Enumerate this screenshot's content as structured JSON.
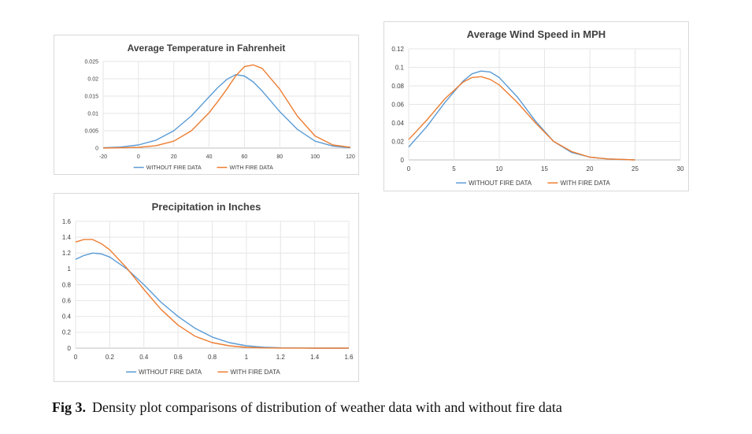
{
  "chart_data": [
    {
      "type": "line",
      "title": "Average Temperature in Fahrenheit",
      "xlabel": "",
      "ylabel": "",
      "xlim": [
        -20,
        120
      ],
      "ylim": [
        0,
        0.025
      ],
      "x_ticks": [
        -20,
        0,
        20,
        40,
        60,
        80,
        100,
        120
      ],
      "y_ticks": [
        0,
        0.005,
        0.01,
        0.015,
        0.02,
        0.025
      ],
      "grid": true,
      "legend_position": "bottom",
      "series": [
        {
          "name": "WITHOUT FIRE DATA",
          "color": "#5b9bd5",
          "x": [
            -20,
            -10,
            0,
            10,
            20,
            30,
            40,
            45,
            50,
            55,
            60,
            65,
            70,
            80,
            90,
            100,
            110,
            120
          ],
          "y": [
            0.0001,
            0.0003,
            0.0009,
            0.0023,
            0.005,
            0.0093,
            0.0148,
            0.0175,
            0.0198,
            0.0212,
            0.0208,
            0.0191,
            0.0165,
            0.0105,
            0.0054,
            0.002,
            0.0006,
            0.0001
          ]
        },
        {
          "name": "WITH FIRE DATA",
          "color": "#ed7d31",
          "x": [
            -20,
            -10,
            0,
            10,
            20,
            30,
            40,
            45,
            50,
            55,
            60,
            65,
            70,
            80,
            90,
            100,
            110,
            120
          ],
          "y": [
            0.0,
            0.0001,
            0.0002,
            0.0007,
            0.002,
            0.005,
            0.0102,
            0.0135,
            0.017,
            0.0208,
            0.0235,
            0.024,
            0.023,
            0.017,
            0.0092,
            0.0035,
            0.0009,
            0.0002
          ]
        }
      ]
    },
    {
      "type": "line",
      "title": "Average Wind Speed in MPH",
      "xlabel": "",
      "ylabel": "",
      "xlim": [
        0,
        30
      ],
      "ylim": [
        0,
        0.12
      ],
      "x_ticks": [
        0,
        5,
        10,
        15,
        20,
        25,
        30
      ],
      "y_ticks": [
        0,
        0.02,
        0.04,
        0.06,
        0.08,
        0.1,
        0.12
      ],
      "grid": true,
      "legend_position": "bottom",
      "series": [
        {
          "name": "WITHOUT FIRE DATA",
          "color": "#5b9bd5",
          "x": [
            0,
            2,
            4,
            6,
            7,
            8,
            9,
            10,
            12,
            14,
            16,
            18,
            20,
            22,
            25
          ],
          "y": [
            0.014,
            0.036,
            0.062,
            0.085,
            0.093,
            0.096,
            0.095,
            0.089,
            0.068,
            0.042,
            0.02,
            0.008,
            0.003,
            0.001,
            0.0
          ]
        },
        {
          "name": "WITH FIRE DATA",
          "color": "#ed7d31",
          "x": [
            0,
            2,
            4,
            6,
            7,
            8,
            9,
            10,
            12,
            14,
            16,
            18,
            20,
            22,
            25
          ],
          "y": [
            0.022,
            0.043,
            0.066,
            0.084,
            0.089,
            0.09,
            0.087,
            0.081,
            0.062,
            0.04,
            0.02,
            0.009,
            0.003,
            0.001,
            0.0
          ]
        }
      ]
    },
    {
      "type": "line",
      "title": "Precipitation in Inches",
      "xlabel": "",
      "ylabel": "",
      "xlim": [
        0,
        1.6
      ],
      "ylim": [
        0,
        1.6
      ],
      "x_ticks": [
        0,
        0.2,
        0.4,
        0.6,
        0.8,
        1,
        1.2,
        1.4,
        1.6
      ],
      "y_ticks": [
        0,
        0.2,
        0.4,
        0.6,
        0.8,
        1,
        1.2,
        1.4,
        1.6
      ],
      "grid": true,
      "legend_position": "bottom",
      "series": [
        {
          "name": "WITHOUT FIRE DATA",
          "color": "#5b9bd5",
          "x": [
            0,
            0.05,
            0.1,
            0.15,
            0.2,
            0.3,
            0.4,
            0.5,
            0.6,
            0.7,
            0.8,
            0.9,
            1.0,
            1.1,
            1.2,
            1.4,
            1.6
          ],
          "y": [
            1.12,
            1.17,
            1.2,
            1.19,
            1.15,
            1.0,
            0.8,
            0.58,
            0.4,
            0.25,
            0.14,
            0.07,
            0.03,
            0.012,
            0.004,
            0.0,
            0.0
          ]
        },
        {
          "name": "WITH FIRE DATA",
          "color": "#ed7d31",
          "x": [
            0,
            0.05,
            0.1,
            0.15,
            0.2,
            0.3,
            0.4,
            0.5,
            0.6,
            0.7,
            0.8,
            0.9,
            1.0,
            1.1,
            1.2,
            1.4,
            1.6
          ],
          "y": [
            1.34,
            1.37,
            1.37,
            1.32,
            1.24,
            1.01,
            0.74,
            0.49,
            0.29,
            0.15,
            0.07,
            0.03,
            0.01,
            0.003,
            0.001,
            0.0,
            0.0
          ]
        }
      ]
    }
  ],
  "caption": {
    "label": "Fig 3.",
    "text": "Density plot comparisons of distribution of weather data with and without fire data"
  }
}
